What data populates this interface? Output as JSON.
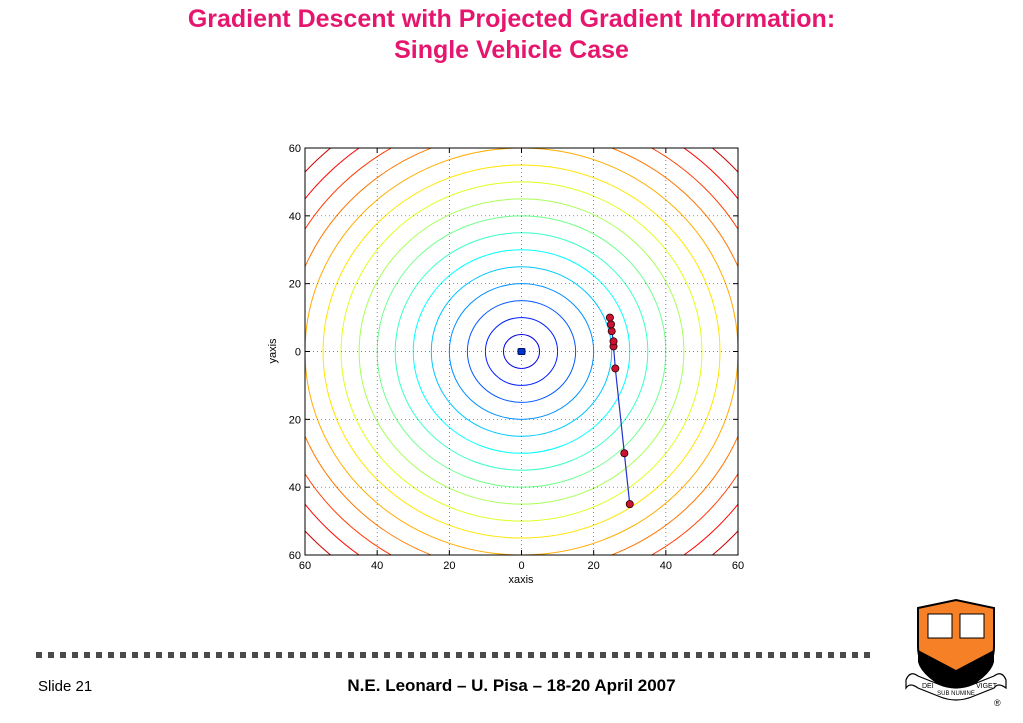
{
  "slide": {
    "title_line1": "Gradient Descent with Projected Gradient Information:",
    "title_line2": "Single Vehicle Case",
    "slide_number": "Slide 21",
    "footer": "N.E. Leonard – U. Pisa – 18-20 April 2007"
  },
  "logo": {
    "motto_left": "DEI",
    "motto_center": "SUB NUMINE",
    "motto_right": "VIGET",
    "registered": "®",
    "colors": {
      "shield": "#f58025",
      "chevron": "#000000",
      "banner": "#ffffff"
    }
  },
  "chart_data": {
    "type": "scatter",
    "xlabel": "xaxis",
    "ylabel": "yaxis",
    "xlim": [
      -60,
      60
    ],
    "ylim": [
      -60,
      60
    ],
    "x_ticks": [
      -60,
      -40,
      -20,
      0,
      20,
      40,
      60
    ],
    "x_tick_labels": [
      "60",
      "40",
      "20",
      "0",
      "20",
      "40",
      "60"
    ],
    "y_ticks": [
      60,
      40,
      20,
      0,
      -20,
      -40,
      -60
    ],
    "y_tick_labels": [
      "60",
      "40",
      "20",
      "0",
      "20",
      "40",
      "60"
    ],
    "grid": true,
    "contours": {
      "shape": "concentric circles centered at origin",
      "radius_step": 5,
      "max_radius": 85,
      "colormap": "jet"
    },
    "target": {
      "x": 0,
      "y": 0,
      "color": "#0033cc"
    },
    "trajectory": {
      "color": "#2233cc",
      "marker_color": "#cc1133",
      "points": [
        {
          "x": 30,
          "y": -45
        },
        {
          "x": 28.5,
          "y": -30
        },
        {
          "x": 26,
          "y": -5
        },
        {
          "x": 25.5,
          "y": 1.5
        },
        {
          "x": 25.5,
          "y": 3
        },
        {
          "x": 25,
          "y": 6
        },
        {
          "x": 24.8,
          "y": 8
        },
        {
          "x": 24.5,
          "y": 10
        }
      ]
    }
  }
}
